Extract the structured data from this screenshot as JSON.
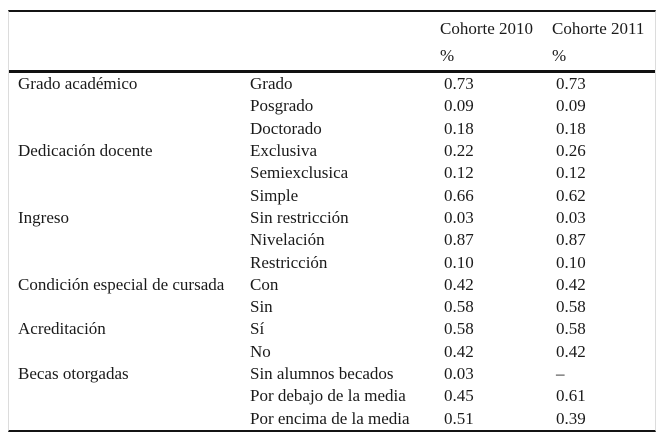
{
  "page": {
    "background_color": "#ffffff",
    "text_color": "#1a1a1a",
    "rule_color": "#141414",
    "side_border_color": "#dcdcdc"
  },
  "table": {
    "header": {
      "category_label": "",
      "subcategory_label": "",
      "cohort_2010": {
        "label": "Cohorte 2010",
        "unit": "%"
      },
      "cohort_2011": {
        "label": "Cohorte 2011",
        "unit": "%"
      }
    },
    "rows": [
      {
        "category": "Grado académico",
        "subcategory": "Grado",
        "cohort_2010": "0.73",
        "cohort_2011": "0.73"
      },
      {
        "category": "",
        "subcategory": "Posgrado",
        "cohort_2010": "0.09",
        "cohort_2011": "0.09"
      },
      {
        "category": "",
        "subcategory": "Doctorado",
        "cohort_2010": "0.18",
        "cohort_2011": "0.18"
      },
      {
        "category": "Dedicación docente",
        "subcategory": "Exclusiva",
        "cohort_2010": "0.22",
        "cohort_2011": "0.26"
      },
      {
        "category": "",
        "subcategory": "Semiexclusica",
        "cohort_2010": "0.12",
        "cohort_2011": "0.12"
      },
      {
        "category": "",
        "subcategory": "Simple",
        "cohort_2010": "0.66",
        "cohort_2011": "0.62"
      },
      {
        "category": "Ingreso",
        "subcategory": "Sin restricción",
        "cohort_2010": "0.03",
        "cohort_2011": "0.03"
      },
      {
        "category": "",
        "subcategory": "Nivelación",
        "cohort_2010": "0.87",
        "cohort_2011": "0.87"
      },
      {
        "category": "",
        "subcategory": "Restricción",
        "cohort_2010": "0.10",
        "cohort_2011": "0.10"
      },
      {
        "category": "Condición especial de cursada",
        "subcategory": "Con",
        "cohort_2010": "0.42",
        "cohort_2011": "0.42"
      },
      {
        "category": "",
        "subcategory": "Sin",
        "cohort_2010": "0.58",
        "cohort_2011": "0.58"
      },
      {
        "category": "Acreditación",
        "subcategory": "Sí",
        "cohort_2010": "0.58",
        "cohort_2011": "0.58"
      },
      {
        "category": "",
        "subcategory": "No",
        "cohort_2010": "0.42",
        "cohort_2011": "0.42"
      },
      {
        "category": "Becas otorgadas",
        "subcategory": "Sin alumnos becados",
        "cohort_2010": "0.03",
        "cohort_2011": "–"
      },
      {
        "category": "",
        "subcategory": "Por debajo de la media",
        "cohort_2010": "0.45",
        "cohort_2011": "0.61"
      },
      {
        "category": "",
        "subcategory": "Por encima de la media",
        "cohort_2010": "0.51",
        "cohort_2011": "0.39"
      }
    ]
  }
}
